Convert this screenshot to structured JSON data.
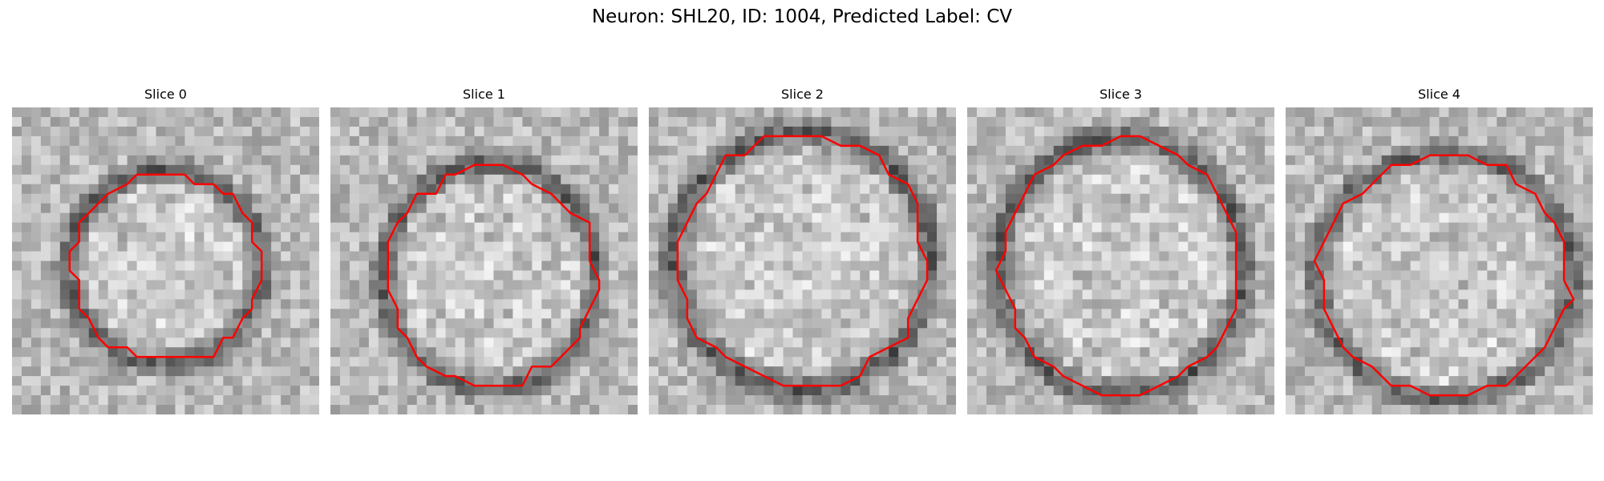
{
  "figure": {
    "title": "Neuron: SHL20, ID: 1004, Predicted Label: CV"
  },
  "panels": [
    {
      "title": "Slice 0",
      "seed": 11,
      "center": [
        0.5,
        0.52
      ],
      "radius": [
        0.3,
        0.3
      ],
      "ring": 0.12
    },
    {
      "title": "Slice 1",
      "seed": 23,
      "center": [
        0.52,
        0.55
      ],
      "radius": [
        0.33,
        0.35
      ],
      "ring": 0.1
    },
    {
      "title": "Slice 2",
      "seed": 37,
      "center": [
        0.5,
        0.5
      ],
      "radius": [
        0.4,
        0.4
      ],
      "ring": 0.1
    },
    {
      "title": "Slice 3",
      "seed": 41,
      "center": [
        0.5,
        0.52
      ],
      "radius": [
        0.38,
        0.4
      ],
      "ring": 0.1
    },
    {
      "title": "Slice 4",
      "seed": 53,
      "center": [
        0.52,
        0.55
      ],
      "radius": [
        0.4,
        0.38
      ],
      "ring": 0.09
    }
  ],
  "colors": {
    "contour": "#ff0000"
  }
}
